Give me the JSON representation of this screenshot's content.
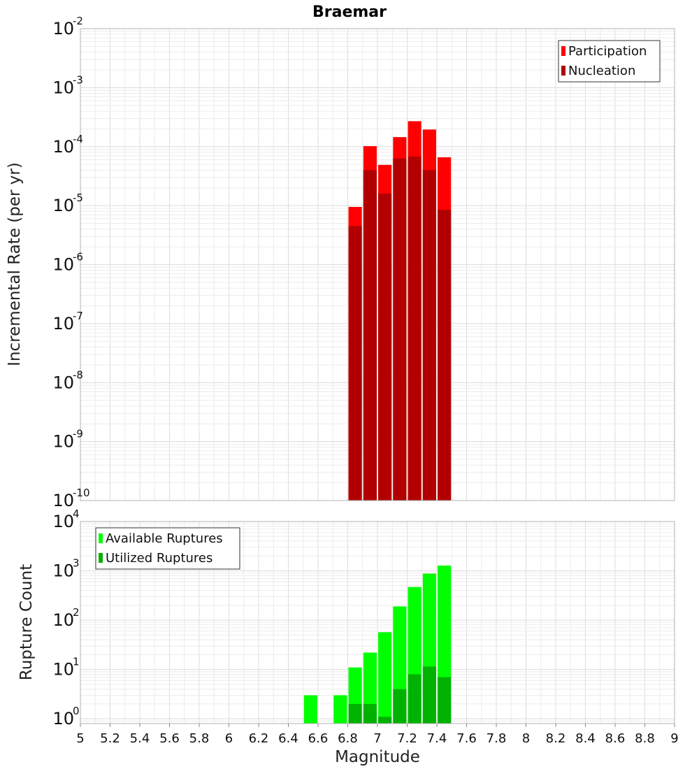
{
  "chart_data": [
    {
      "type": "bar",
      "title": "Braemar",
      "xlabel": "",
      "ylabel": "Incremental Rate (per yr)",
      "yscale": "log",
      "ylim": [
        1e-10,
        0.01
      ],
      "xlim": [
        5,
        9
      ],
      "bin_width": 0.1,
      "legend_position": "top-right",
      "grid": true,
      "x": [
        6.85,
        6.95,
        7.05,
        7.15,
        7.25,
        7.35,
        7.45
      ],
      "series": [
        {
          "name": "Participation",
          "color": "#ff0000",
          "values": [
            9.5e-06,
            0.000102,
            4.9e-05,
            0.000145,
            0.00027,
            0.000195,
            6.6e-05
          ]
        },
        {
          "name": "Nucleation",
          "color": "#b20000",
          "values": [
            4.5e-06,
            4e-05,
            1.6e-05,
            6.3e-05,
            6.8e-05,
            4e-05,
            8.5e-06
          ]
        }
      ],
      "yticks": [
        {
          "mantissa": "10",
          "exp": "-10"
        },
        {
          "mantissa": "10",
          "exp": "-9"
        },
        {
          "mantissa": "10",
          "exp": "-8"
        },
        {
          "mantissa": "10",
          "exp": "-7"
        },
        {
          "mantissa": "10",
          "exp": "-6"
        },
        {
          "mantissa": "10",
          "exp": "-5"
        },
        {
          "mantissa": "10",
          "exp": "-4"
        },
        {
          "mantissa": "10",
          "exp": "-3"
        },
        {
          "mantissa": "10",
          "exp": "-2"
        }
      ]
    },
    {
      "type": "bar",
      "title": "",
      "xlabel": "Magnitude",
      "ylabel": "Rupture Count",
      "yscale": "log",
      "ylim": [
        0.8,
        10000
      ],
      "xlim": [
        5,
        9
      ],
      "bin_width": 0.1,
      "legend_position": "top-left",
      "grid": true,
      "x": [
        6.55,
        6.75,
        6.85,
        6.95,
        7.05,
        7.15,
        7.25,
        7.35,
        7.45
      ],
      "series": [
        {
          "name": "Available Ruptures",
          "color": "#00ff00",
          "values": [
            3,
            3,
            11,
            22,
            57,
            190,
            470,
            880,
            1280
          ]
        },
        {
          "name": "Utilized Ruptures",
          "color": "#00b200",
          "values": [
            0,
            0,
            2,
            2,
            1.1,
            4,
            8,
            11.5,
            7
          ]
        }
      ],
      "xticks": [
        "5",
        "5.2",
        "5.4",
        "5.6",
        "5.8",
        "6",
        "6.2",
        "6.4",
        "6.6",
        "6.8",
        "7",
        "7.2",
        "7.4",
        "7.6",
        "7.8",
        "8",
        "8.2",
        "8.4",
        "8.6",
        "8.8",
        "9"
      ],
      "yticks": [
        {
          "mantissa": "10",
          "exp": "0"
        },
        {
          "mantissa": "10",
          "exp": "1"
        },
        {
          "mantissa": "10",
          "exp": "2"
        },
        {
          "mantissa": "10",
          "exp": "3"
        },
        {
          "mantissa": "10",
          "exp": "4"
        }
      ]
    }
  ]
}
